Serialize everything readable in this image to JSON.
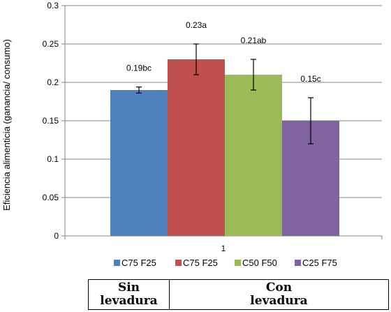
{
  "chart_data": {
    "type": "bar",
    "categories": [
      "1"
    ],
    "ylabel": "Eficiencia alimenticia (ganancia/ consumo)",
    "xlabel": "",
    "ylim": [
      0,
      0.3
    ],
    "yticks": [
      "0",
      "0.05",
      "0.1",
      "0.15",
      "0.2",
      "0.25",
      "0.3"
    ],
    "grid": true,
    "legend_position": "bottom",
    "series": [
      {
        "name": "C75 F25",
        "values": [
          0.19
        ],
        "error": [
          0.004
        ],
        "label": "0.19bc",
        "color": "#4f81bd"
      },
      {
        "name": "C75 F25",
        "values": [
          0.23
        ],
        "error": [
          0.02
        ],
        "label": "0.23a",
        "color": "#c0504d"
      },
      {
        "name": "C50 F50",
        "values": [
          0.21
        ],
        "error": [
          0.02
        ],
        "label": "0.21ab",
        "color": "#9bbb59"
      },
      {
        "name": "C25 F75",
        "values": [
          0.15
        ],
        "error": [
          0.03
        ],
        "label": "0.15c",
        "color": "#8064a2"
      }
    ]
  },
  "groups": [
    "Sin\nlevadura",
    "Con\nlevadura"
  ]
}
